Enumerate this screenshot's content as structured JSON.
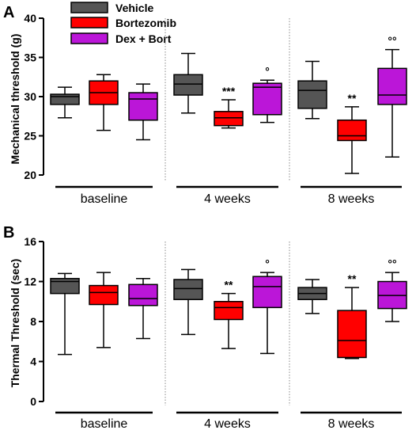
{
  "legend": [
    {
      "name": "Vehicle",
      "color": "#555555"
    },
    {
      "name": "Bortezomib",
      "color": "#ff0000"
    },
    {
      "name": "Dex + Bort",
      "color": "#bb16d8"
    }
  ],
  "chart_data": [
    {
      "type": "box",
      "panel": "A",
      "ylabel": "Mechanical threshold (g)",
      "ylim": [
        20,
        40
      ],
      "yticks": [
        20,
        25,
        30,
        35,
        40
      ],
      "groups": [
        "baseline",
        "4 weeks",
        "8 weeks"
      ],
      "series": [
        {
          "name": "Vehicle",
          "boxes": [
            {
              "min": 27.3,
              "q1": 29.0,
              "median": 30.0,
              "q3": 30.3,
              "max": 31.2,
              "annotation": ""
            },
            {
              "min": 27.9,
              "q1": 30.2,
              "median": 31.6,
              "q3": 32.8,
              "max": 35.5,
              "annotation": ""
            },
            {
              "min": 27.2,
              "q1": 28.5,
              "median": 30.8,
              "q3": 32.0,
              "max": 34.5,
              "annotation": ""
            }
          ]
        },
        {
          "name": "Bortezomib",
          "boxes": [
            {
              "min": 25.7,
              "q1": 29.0,
              "median": 30.5,
              "q3": 32.0,
              "max": 32.8,
              "annotation": ""
            },
            {
              "min": 26.0,
              "q1": 26.3,
              "median": 27.3,
              "q3": 28.1,
              "max": 29.6,
              "annotation": "***"
            },
            {
              "min": 20.2,
              "q1": 24.4,
              "median": 25.0,
              "q3": 27.0,
              "max": 28.7,
              "annotation": "**"
            }
          ]
        },
        {
          "name": "Dex + Bort",
          "boxes": [
            {
              "min": 24.5,
              "q1": 27.0,
              "median": 29.7,
              "q3": 30.5,
              "max": 31.6,
              "annotation": ""
            },
            {
              "min": 26.7,
              "q1": 27.7,
              "median": 31.2,
              "q3": 31.7,
              "max": 32.1,
              "annotation": "°"
            },
            {
              "min": 22.3,
              "q1": 29.0,
              "median": 30.2,
              "q3": 33.6,
              "max": 36.0,
              "annotation": "°°"
            }
          ]
        }
      ]
    },
    {
      "type": "box",
      "panel": "B",
      "ylabel": "Thermal Threshold (sec)",
      "ylim": [
        0,
        16
      ],
      "yticks": [
        0,
        4,
        8,
        12,
        16
      ],
      "groups": [
        "baseline",
        "4 weeks",
        "8 weeks"
      ],
      "series": [
        {
          "name": "Vehicle",
          "boxes": [
            {
              "min": 4.7,
              "q1": 10.8,
              "median": 12.0,
              "q3": 12.3,
              "max": 12.8,
              "annotation": ""
            },
            {
              "min": 6.7,
              "q1": 10.2,
              "median": 11.3,
              "q3": 12.2,
              "max": 13.2,
              "annotation": ""
            },
            {
              "min": 8.8,
              "q1": 10.2,
              "median": 10.8,
              "q3": 11.4,
              "max": 12.2,
              "annotation": ""
            }
          ]
        },
        {
          "name": "Bortezomib",
          "boxes": [
            {
              "min": 5.4,
              "q1": 9.7,
              "median": 10.9,
              "q3": 11.6,
              "max": 12.9,
              "annotation": ""
            },
            {
              "min": 5.3,
              "q1": 8.2,
              "median": 9.4,
              "q3": 10.0,
              "max": 10.8,
              "annotation": "**"
            },
            {
              "min": 4.3,
              "q1": 4.4,
              "median": 6.1,
              "q3": 9.1,
              "max": 11.4,
              "annotation": "**"
            }
          ]
        },
        {
          "name": "Dex + Bort",
          "boxes": [
            {
              "min": 6.3,
              "q1": 9.6,
              "median": 10.3,
              "q3": 11.7,
              "max": 12.3,
              "annotation": ""
            },
            {
              "min": 4.8,
              "q1": 9.4,
              "median": 11.5,
              "q3": 12.5,
              "max": 12.9,
              "annotation": "°"
            },
            {
              "min": 8.0,
              "q1": 9.3,
              "median": 10.6,
              "q3": 12.0,
              "max": 12.9,
              "annotation": "°°"
            }
          ]
        }
      ]
    }
  ]
}
